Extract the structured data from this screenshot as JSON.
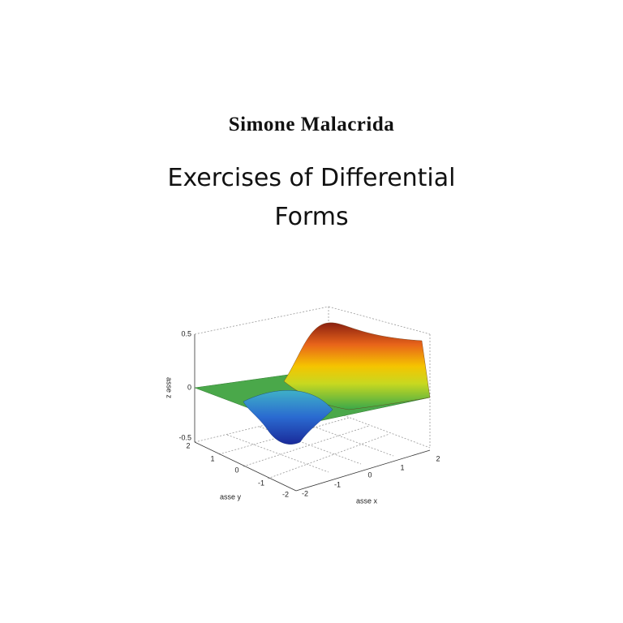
{
  "author": "Simone Malacrida",
  "title": [
    "Exercises of Differential",
    "Forms"
  ],
  "figure": {
    "z_axis_label": "asse z",
    "y_axis_label": "asse y",
    "x_axis_label": "asse x",
    "z_ticks": [
      "0.5",
      "0",
      "-0.5"
    ],
    "y_ticks": [
      "2",
      "1",
      "0",
      "-1",
      "-2"
    ],
    "x_ticks": [
      "-2",
      "-1",
      "0",
      "1",
      "2"
    ]
  }
}
